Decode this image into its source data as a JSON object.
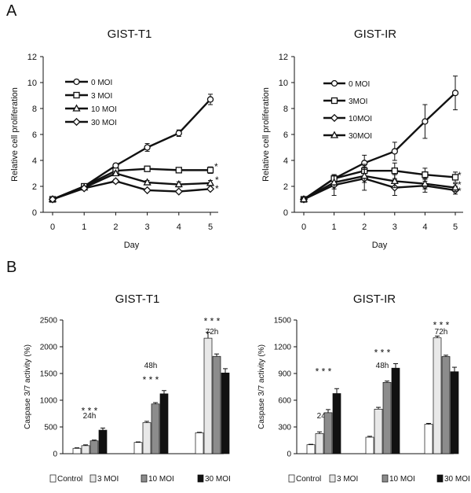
{
  "figure": {
    "panel_a": "A",
    "panel_b": "B"
  },
  "chart_data": [
    {
      "type": "line",
      "title": "GIST-T1",
      "xlabel": "Day",
      "ylabel": "Relative cell proliferation",
      "x": [
        0,
        1,
        2,
        3,
        4,
        5
      ],
      "ylim": [
        0,
        12
      ],
      "yticks": [
        0,
        2,
        4,
        6,
        8,
        10,
        12
      ],
      "series": [
        {
          "name": "0 MOI",
          "marker": "circle",
          "values": [
            1,
            2,
            3.6,
            5.0,
            6.1,
            8.7
          ],
          "errors": [
            0.1,
            0.1,
            0.15,
            0.3,
            0.25,
            0.4
          ]
        },
        {
          "name": "3 MOI",
          "marker": "square",
          "values": [
            1,
            2,
            3.2,
            3.35,
            3.25,
            3.25
          ],
          "errors": [
            0.1,
            0.1,
            0.15,
            0.15,
            0.2,
            0.25
          ]
        },
        {
          "name": "10 MOI",
          "marker": "triangle",
          "values": [
            1,
            1.9,
            3.0,
            2.3,
            2.15,
            2.25
          ],
          "errors": [
            0.1,
            0.1,
            0.15,
            0.15,
            0.2,
            0.2
          ]
        },
        {
          "name": "30 MOI",
          "marker": "diamond",
          "values": [
            1,
            1.85,
            2.4,
            1.7,
            1.6,
            1.8
          ],
          "errors": [
            0.1,
            0.1,
            0.15,
            0.1,
            0.1,
            0.1
          ]
        }
      ],
      "annotations": [
        "*",
        "*",
        "*"
      ]
    },
    {
      "type": "line",
      "title": "GIST-IR",
      "xlabel": "Day",
      "ylabel": "Relative cell proliferation",
      "x": [
        0,
        1,
        2,
        3,
        4,
        5
      ],
      "ylim": [
        0,
        12
      ],
      "yticks": [
        0,
        2,
        4,
        6,
        8,
        10,
        12
      ],
      "series": [
        {
          "name": "0 MOI",
          "marker": "circle",
          "values": [
            1,
            2.6,
            3.8,
            4.7,
            7.0,
            9.2
          ],
          "errors": [
            0.1,
            0.3,
            0.6,
            0.7,
            1.3,
            1.3
          ]
        },
        {
          "name": "3MOI",
          "marker": "square",
          "values": [
            1,
            2.6,
            3.2,
            3.2,
            2.9,
            2.7
          ],
          "errors": [
            0.1,
            0.3,
            0.5,
            0.6,
            0.5,
            0.4
          ]
        },
        {
          "name": "10MOI",
          "marker": "diamond",
          "values": [
            1,
            2.1,
            2.6,
            1.9,
            2.05,
            1.7
          ],
          "errors": [
            0.1,
            0.8,
            0.9,
            0.6,
            0.5,
            0.3
          ]
        },
        {
          "name": "30MOI",
          "marker": "triangle",
          "values": [
            1,
            2.3,
            2.8,
            2.4,
            2.2,
            1.9
          ],
          "errors": [
            0.1,
            0.5,
            0.5,
            0.5,
            0.4,
            0.3
          ]
        }
      ],
      "annotations": [
        "*",
        "*",
        "*"
      ]
    },
    {
      "type": "bar",
      "title": "GIST-T1",
      "ylabel": "Caspase 3/7 activity (%)",
      "categories": [
        "24h",
        "48h",
        "72h"
      ],
      "ylim": [
        0,
        2500
      ],
      "yticks": [
        0,
        500,
        1000,
        1500,
        2000,
        2500
      ],
      "series": [
        {
          "name": "Control",
          "values": [
            100,
            210,
            390
          ],
          "errors": [
            10,
            10,
            10
          ]
        },
        {
          "name": "3 MOI",
          "values": [
            150,
            580,
            2160
          ],
          "errors": [
            15,
            25,
            110
          ]
        },
        {
          "name": "10 MOI",
          "values": [
            240,
            930,
            1820
          ],
          "errors": [
            15,
            25,
            45
          ]
        },
        {
          "name": "30 MOI",
          "values": [
            440,
            1120,
            1510
          ],
          "errors": [
            40,
            60,
            80
          ]
        }
      ],
      "annotations": [
        "* * *",
        "* * *",
        "* * *"
      ]
    },
    {
      "type": "bar",
      "title": "GIST-IR",
      "ylabel": "Caspase 3/7 activity (%)",
      "categories": [
        "24h",
        "48h",
        "72h"
      ],
      "ylim": [
        0,
        1500
      ],
      "yticks": [
        0,
        300,
        600,
        900,
        1200,
        1500
      ],
      "series": [
        {
          "name": "Control",
          "values": [
            100,
            185,
            330
          ],
          "errors": [
            5,
            10,
            10
          ]
        },
        {
          "name": "3 MOI",
          "values": [
            225,
            500,
            1300
          ],
          "errors": [
            20,
            20,
            20
          ]
        },
        {
          "name": "10 MOI",
          "values": [
            460,
            800,
            1090
          ],
          "errors": [
            35,
            15,
            15
          ]
        },
        {
          "name": "30 MOI",
          "values": [
            675,
            960,
            920
          ],
          "errors": [
            55,
            50,
            50
          ]
        }
      ],
      "annotations": [
        "* * *",
        "* * *",
        "* * *"
      ]
    }
  ],
  "bar_colors": [
    "#ffffff",
    "#e8e8e8",
    "#8c8c8c",
    "#111111"
  ]
}
